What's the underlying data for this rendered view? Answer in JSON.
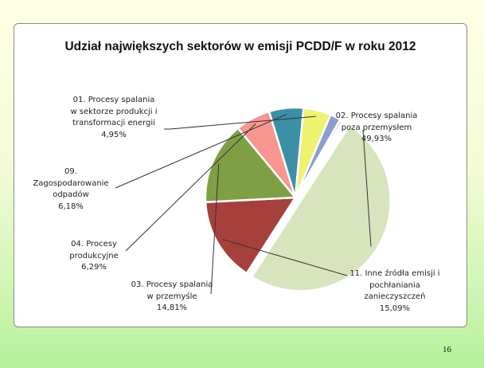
{
  "page_number": "16",
  "chart_data": {
    "type": "pie",
    "title": "Udział największych sektorów w emisji PCDD/F w roku 2012",
    "slices": [
      {
        "key": "s02",
        "label_lines": [
          "02. Procesy spalania",
          "poza przemysłem"
        ],
        "value_label": "49,93%",
        "value": 49.93,
        "color": "#d7e4bd"
      },
      {
        "key": "s11",
        "label_lines": [
          "11. Inne źródła emisji i",
          "pochłaniania",
          "zanieczyszczeń"
        ],
        "value_label": "15,09%",
        "value": 15.09,
        "color": "#a5403c"
      },
      {
        "key": "s03",
        "label_lines": [
          "03. Procesy spalania",
          "w przemyśle"
        ],
        "value_label": "14,81%",
        "value": 14.81,
        "color": "#7f9f45"
      },
      {
        "key": "s04",
        "label_lines": [
          "04. Procesy",
          "produkcyjne"
        ],
        "value_label": "6,29%",
        "value": 6.29,
        "color": "#f79690"
      },
      {
        "key": "s09",
        "label_lines": [
          "09.",
          "Zagospodarowanie",
          "odpadów"
        ],
        "value_label": "6,18%",
        "value": 6.18,
        "color": "#3d8fa5"
      },
      {
        "key": "s01",
        "label_lines": [
          "01. Procesy spalania",
          "w sektorze produkcji i",
          "transformacji energii"
        ],
        "value_label": "4,95%",
        "value": 4.95,
        "color": "#eef26e"
      },
      {
        "key": "x1",
        "label_lines": [],
        "value_label": "",
        "value": 1.9,
        "color": "#8b9fcf"
      },
      {
        "key": "x2",
        "label_lines": [],
        "value_label": "",
        "value": 0.5,
        "color": "#e8b9b9"
      },
      {
        "key": "x3",
        "label_lines": [],
        "value_label": "",
        "value": 0.35,
        "color": "#c8a0d8"
      }
    ],
    "legend": "none"
  }
}
